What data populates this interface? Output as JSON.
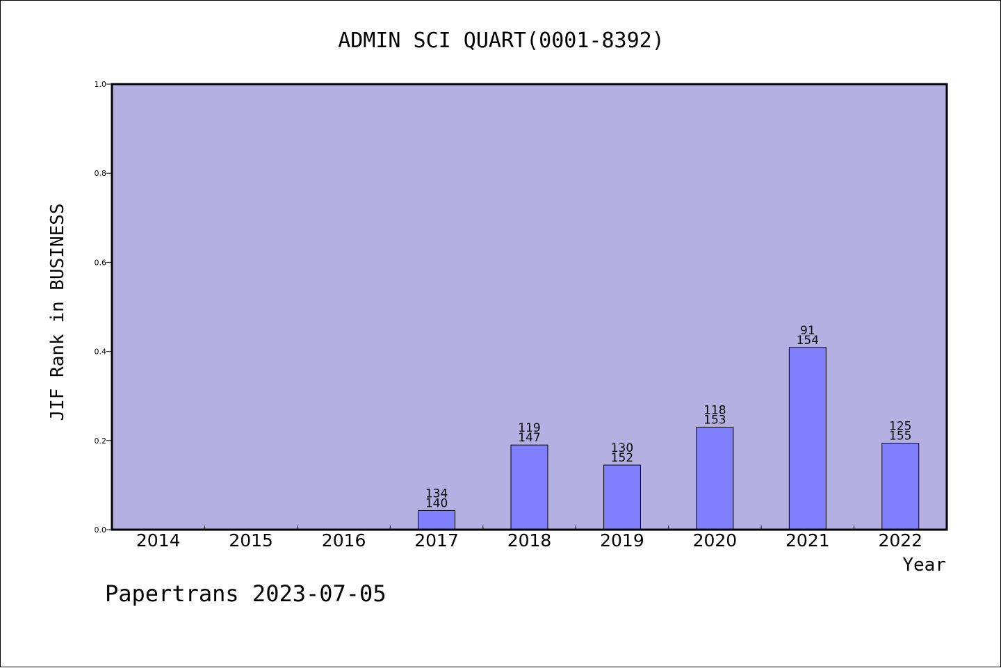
{
  "chart_data": {
    "type": "bar",
    "title": "ADMIN SCI QUART(0001-8392)",
    "xlabel": "Year",
    "ylabel": "JIF Rank in BUSINESS",
    "ylim": [
      0,
      1.0
    ],
    "yticks": [
      "0.0",
      "0.2",
      "0.4",
      "0.6",
      "0.8",
      "1.0"
    ],
    "categories": [
      "2014",
      "2015",
      "2016",
      "2017",
      "2018",
      "2019",
      "2020",
      "2021",
      "2022"
    ],
    "values": [
      null,
      null,
      null,
      0.043,
      0.19,
      0.145,
      0.23,
      0.409,
      0.194
    ],
    "rank": [
      null,
      null,
      null,
      "134",
      "119",
      "130",
      "118",
      "91",
      "125"
    ],
    "total": [
      null,
      null,
      null,
      "140",
      "147",
      "152",
      "153",
      "154",
      "155"
    ],
    "grid": false,
    "colors": {
      "plot_background": "#b5b0e2",
      "bar_fill": "#8080ff",
      "bar_stroke": "#000000"
    }
  },
  "footer": "Papertrans 2023-07-05"
}
